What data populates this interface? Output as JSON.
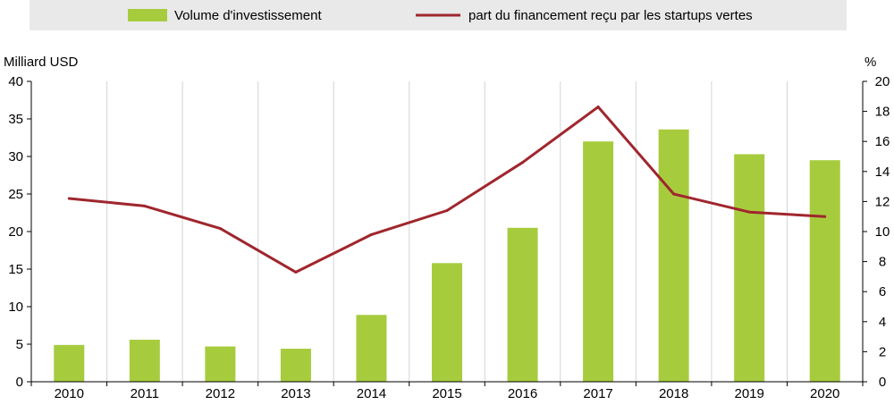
{
  "chart_data": {
    "type": "bar",
    "categories": [
      "2010",
      "2011",
      "2012",
      "2013",
      "2014",
      "2015",
      "2016",
      "2017",
      "2018",
      "2019",
      "2020"
    ],
    "series": [
      {
        "name": "Volume d'investissement",
        "type": "bar",
        "axis": "left",
        "color": "#a6cc3e",
        "values": [
          4.9,
          5.6,
          4.7,
          4.4,
          8.9,
          15.8,
          20.5,
          32.0,
          33.6,
          30.3,
          29.5
        ]
      },
      {
        "name": "part du financement reçu par les startups vertes",
        "type": "line",
        "axis": "right",
        "color": "#a0262e",
        "values": [
          12.2,
          11.7,
          10.2,
          7.3,
          9.8,
          11.4,
          14.6,
          18.3,
          12.5,
          11.3,
          11.0
        ]
      }
    ],
    "ylabel_left": "Milliard USD",
    "ylabel_right": "%",
    "ylim_left": [
      0,
      40
    ],
    "ylim_right": [
      0,
      20
    ],
    "yticks_left": [
      "0",
      "5",
      "10",
      "15",
      "20",
      "25",
      "30",
      "35",
      "40"
    ],
    "yticks_right": [
      "0",
      "2",
      "4",
      "6",
      "8",
      "10",
      "12",
      "14",
      "16",
      "18",
      "20"
    ],
    "grid": "vertical",
    "legend_position": "top"
  },
  "colors": {
    "legend_background": "#e9e9e9",
    "grid": "#d4d4d4",
    "axis": "#000000"
  }
}
